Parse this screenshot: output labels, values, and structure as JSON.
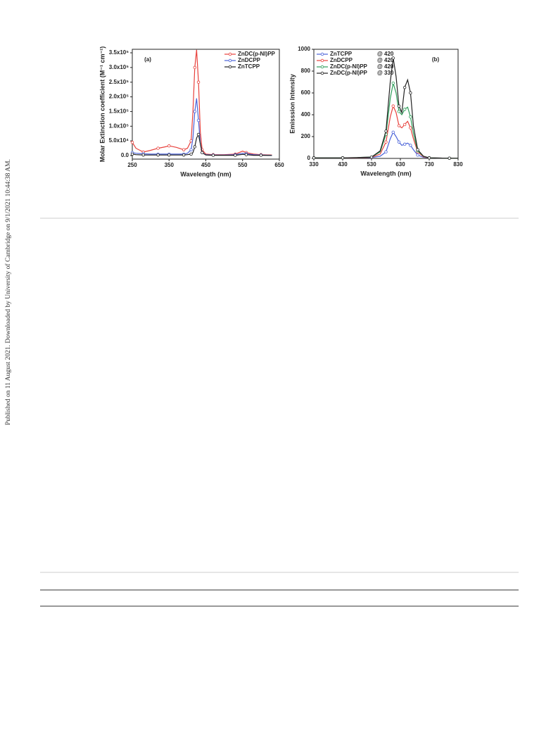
{
  "side_note": "Published on 11 August 2021. Downloaded by University of Cambridge on 9/1/2021 10:44:38 AM.",
  "chart_data": [
    {
      "type": "line",
      "panel": "(a)",
      "x_label": "Wavelength (nm)",
      "y_label": "Molar Extinction coefficient (M⁻¹ cm⁻¹)",
      "xlim": [
        250,
        650
      ],
      "xticks": [
        250,
        350,
        450,
        550,
        650
      ],
      "ylim": [
        -12000,
        362000
      ],
      "yticks": [
        {
          "value": 0,
          "label": "0.0"
        },
        {
          "value": 50000,
          "label": "5.0x10⁴"
        },
        {
          "value": 100000,
          "label": "1.0x10⁵"
        },
        {
          "value": 150000,
          "label": "1.5x10⁵"
        },
        {
          "value": 200000,
          "label": "2.0x10⁵"
        },
        {
          "value": 250000,
          "label": "2.5x10⁵"
        },
        {
          "value": 300000,
          "label": "3.0x10⁵"
        },
        {
          "value": 350000,
          "label": "3.5x10⁵"
        }
      ],
      "legend": "upper right",
      "x": [
        250,
        260,
        280,
        300,
        320,
        340,
        350,
        370,
        390,
        400,
        410,
        415,
        420,
        425,
        430,
        435,
        440,
        450,
        470,
        500,
        530,
        550,
        560,
        580,
        600,
        630
      ],
      "series": [
        {
          "name": "ZnDC(p-NI)PP",
          "color": "#e8413c",
          "values": [
            45000,
            25000,
            12000,
            18000,
            25000,
            30000,
            33000,
            28000,
            20000,
            25000,
            50000,
            150000,
            300000,
            360000,
            250000,
            80000,
            20000,
            5000,
            3000,
            3000,
            5000,
            15000,
            10000,
            5000,
            3000,
            2000
          ]
        },
        {
          "name": "ZnDCPP",
          "color": "#4a62d8",
          "values": [
            10000,
            8000,
            6000,
            5000,
            5000,
            5000,
            5000,
            5000,
            5000,
            8000,
            20000,
            60000,
            150000,
            195000,
            120000,
            40000,
            10000,
            3000,
            2000,
            2000,
            3000,
            8000,
            6000,
            3000,
            2000,
            1000
          ]
        },
        {
          "name": "ZnTCPP",
          "color": "#222222",
          "values": [
            5000,
            3000,
            2000,
            2000,
            2000,
            2000,
            2000,
            2000,
            2000,
            3000,
            5000,
            10000,
            30000,
            60000,
            72000,
            40000,
            10000,
            2000,
            1000,
            1000,
            1000,
            4000,
            3000,
            1000,
            1000,
            500
          ]
        }
      ]
    },
    {
      "type": "line",
      "panel": "(b)",
      "x_label": "Wavelength (nm)",
      "y_label": "Emisssion Intensity",
      "xlim": [
        330,
        830
      ],
      "xticks": [
        330,
        430,
        530,
        630,
        730,
        830
      ],
      "ylim": [
        0,
        1000
      ],
      "yticks": [
        0,
        200,
        400,
        600,
        800,
        1000
      ],
      "legend": "upper left",
      "x": [
        330,
        380,
        430,
        480,
        530,
        560,
        580,
        595,
        605,
        615,
        625,
        635,
        645,
        655,
        665,
        675,
        690,
        710,
        730,
        760,
        800,
        830
      ],
      "series": [
        {
          "name": "ZnTCPP",
          "excitation": "@ 420",
          "color": "#4a62d8",
          "values": [
            5,
            5,
            5,
            5,
            8,
            20,
            60,
            180,
            240,
            200,
            150,
            120,
            130,
            140,
            120,
            80,
            30,
            10,
            5,
            3,
            2,
            2
          ]
        },
        {
          "name": "ZnDCPP",
          "excitation": "@ 420",
          "color": "#e8413c",
          "values": [
            5,
            5,
            5,
            5,
            10,
            40,
            150,
            380,
            480,
            420,
            300,
            280,
            310,
            340,
            280,
            180,
            60,
            15,
            5,
            3,
            2,
            2
          ]
        },
        {
          "name": "ZnDC(p-NI)PP",
          "excitation": "@ 420",
          "color": "#2e9e5a",
          "values": [
            5,
            5,
            5,
            8,
            12,
            60,
            220,
            550,
            690,
            600,
            430,
            400,
            450,
            470,
            380,
            230,
            70,
            20,
            5,
            3,
            2,
            2
          ]
        },
        {
          "name": "ZnDC(p-NI)PP",
          "excitation": "@ 330",
          "color": "#222222",
          "values": [
            5,
            5,
            5,
            8,
            12,
            70,
            250,
            700,
            920,
            750,
            480,
            420,
            650,
            720,
            600,
            300,
            80,
            20,
            5,
            3,
            2,
            2
          ]
        }
      ]
    }
  ]
}
